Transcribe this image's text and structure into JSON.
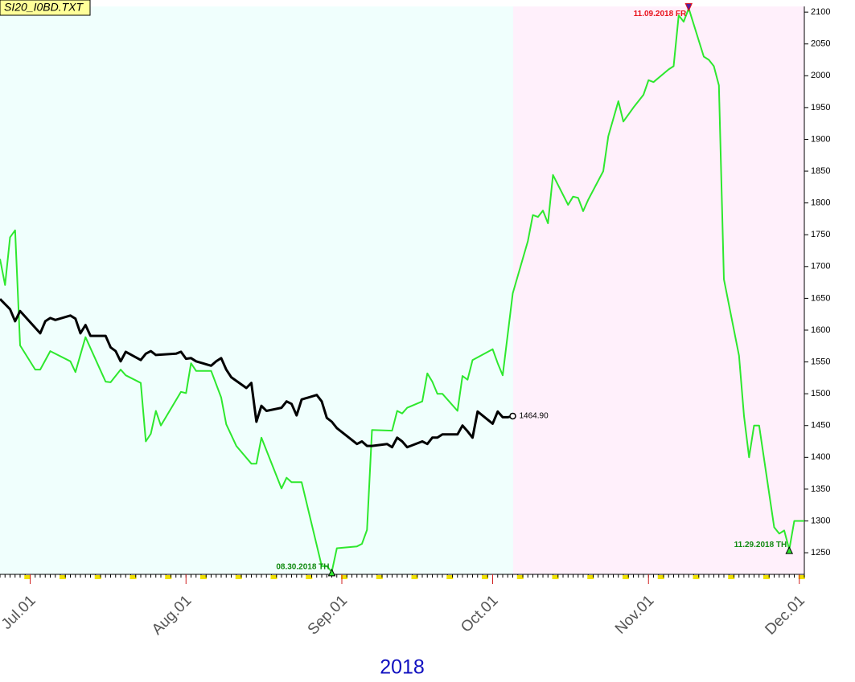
{
  "chart_data": {
    "type": "line",
    "title": "SI20_I0BD.TXT",
    "xlabel": "2018",
    "xlim": [
      "2018-06-25",
      "2018-12-02"
    ],
    "xticks": [
      {
        "value": "2018-07-01",
        "label": "Jul.01"
      },
      {
        "value": "2018-08-01",
        "label": "Aug.01"
      },
      {
        "value": "2018-09-01",
        "label": "Sep.01"
      },
      {
        "value": "2018-10-01",
        "label": "Oct.01"
      },
      {
        "value": "2018-11-01",
        "label": "Nov.01"
      },
      {
        "value": "2018-12-01",
        "label": "Dec.01"
      }
    ],
    "ylim": [
      1216,
      2109
    ],
    "yticks": [
      1250,
      1300,
      1350,
      1400,
      1450,
      1500,
      1550,
      1600,
      1650,
      1700,
      1750,
      1800,
      1850,
      1900,
      1950,
      2000,
      2050,
      2100
    ],
    "series": [
      {
        "color": "#2ee82e",
        "x": [
          "2018-06-25",
          "2018-06-26",
          "2018-06-27",
          "2018-06-28",
          "2018-06-29",
          "2018-07-02",
          "2018-07-03",
          "2018-07-05",
          "2018-07-09",
          "2018-07-10",
          "2018-07-12",
          "2018-07-16",
          "2018-07-17",
          "2018-07-19",
          "2018-07-20",
          "2018-07-23",
          "2018-07-24",
          "2018-07-25",
          "2018-07-26",
          "2018-07-27",
          "2018-07-31",
          "2018-08-01",
          "2018-08-02",
          "2018-08-03",
          "2018-08-06",
          "2018-08-08",
          "2018-08-09",
          "2018-08-11",
          "2018-08-14",
          "2018-08-15",
          "2018-08-16",
          "2018-08-20",
          "2018-08-21",
          "2018-08-22",
          "2018-08-24",
          "2018-08-28",
          "2018-08-29",
          "2018-08-30",
          "2018-08-31",
          "2018-09-04",
          "2018-09-05",
          "2018-09-06",
          "2018-09-07",
          "2018-09-11",
          "2018-09-12",
          "2018-09-13",
          "2018-09-14",
          "2018-09-17",
          "2018-09-18",
          "2018-09-19",
          "2018-09-20",
          "2018-09-21",
          "2018-09-24",
          "2018-09-25",
          "2018-09-26",
          "2018-09-27",
          "2018-10-01",
          "2018-10-02",
          "2018-10-03",
          "2018-10-05",
          "2018-10-08",
          "2018-10-09",
          "2018-10-10",
          "2018-10-11",
          "2018-10-12",
          "2018-10-13",
          "2018-10-16",
          "2018-10-17",
          "2018-10-18",
          "2018-10-19",
          "2018-10-20",
          "2018-10-23",
          "2018-10-24",
          "2018-10-26",
          "2018-10-27",
          "2018-10-29",
          "2018-10-31",
          "2018-11-01",
          "2018-11-02",
          "2018-11-05",
          "2018-11-06",
          "2018-11-07",
          "2018-11-08",
          "2018-11-09",
          "2018-11-12",
          "2018-11-13",
          "2018-11-14",
          "2018-11-15",
          "2018-11-16",
          "2018-11-19",
          "2018-11-20",
          "2018-11-21",
          "2018-11-22",
          "2018-11-23",
          "2018-11-26",
          "2018-11-27",
          "2018-11-28",
          "2018-11-29",
          "2018-11-30",
          "2018-12-02"
        ],
        "values": [
          1712,
          1671,
          1746,
          1757,
          1576,
          1538,
          1538,
          1567,
          1551,
          1534,
          1589,
          1519,
          1518,
          1538,
          1529,
          1517,
          1425,
          1437,
          1473,
          1450,
          1503,
          1501,
          1548,
          1536,
          1536,
          1494,
          1452,
          1418,
          1390,
          1390,
          1431,
          1351,
          1368,
          1361,
          1361,
          1229,
          1229,
          1220,
          1257,
          1260,
          1264,
          1286,
          1443,
          1442,
          1473,
          1469,
          1478,
          1488,
          1532,
          1519,
          1500,
          1500,
          1473,
          1528,
          1522,
          1553,
          1570,
          1548,
          1529,
          1658,
          1740,
          1781,
          1778,
          1788,
          1768,
          1844,
          1797,
          1810,
          1808,
          1787,
          1805,
          1850,
          1905,
          1960,
          1928,
          1950,
          1970,
          1993,
          1990,
          2010,
          2015,
          2095,
          2085,
          2106,
          2030,
          2025,
          2015,
          1985,
          1680,
          1560,
          1465,
          1400,
          1450,
          1450,
          1290,
          1280,
          1285,
          1255,
          1300,
          1300
        ]
      },
      {
        "color": "#000000",
        "x": [
          "2018-06-25",
          "2018-06-27",
          "2018-06-28",
          "2018-06-29",
          "2018-07-03",
          "2018-07-04",
          "2018-07-05",
          "2018-07-06",
          "2018-07-09",
          "2018-07-10",
          "2018-07-11",
          "2018-07-12",
          "2018-07-13",
          "2018-07-16",
          "2018-07-17",
          "2018-07-18",
          "2018-07-19",
          "2018-07-20",
          "2018-07-23",
          "2018-07-24",
          "2018-07-25",
          "2018-07-26",
          "2018-07-30",
          "2018-07-31",
          "2018-08-01",
          "2018-08-02",
          "2018-08-03",
          "2018-08-06",
          "2018-08-07",
          "2018-08-08",
          "2018-08-09",
          "2018-08-10",
          "2018-08-13",
          "2018-08-14",
          "2018-08-15",
          "2018-08-16",
          "2018-08-17",
          "2018-08-20",
          "2018-08-21",
          "2018-08-22",
          "2018-08-23",
          "2018-08-24",
          "2018-08-27",
          "2018-08-28",
          "2018-08-29",
          "2018-08-30",
          "2018-08-31",
          "2018-09-04",
          "2018-09-05",
          "2018-09-06",
          "2018-09-07",
          "2018-09-10",
          "2018-09-11",
          "2018-09-12",
          "2018-09-13",
          "2018-09-14",
          "2018-09-17",
          "2018-09-18",
          "2018-09-19",
          "2018-09-20",
          "2018-09-21",
          "2018-09-24",
          "2018-09-25",
          "2018-09-26",
          "2018-09-27",
          "2018-09-28",
          "2018-10-01",
          "2018-10-02",
          "2018-10-03",
          "2018-10-04",
          "2018-10-05"
        ],
        "values": [
          1649,
          1633,
          1614,
          1630,
          1595,
          1614,
          1619,
          1616,
          1623,
          1618,
          1595,
          1608,
          1591,
          1591,
          1573,
          1567,
          1551,
          1566,
          1553,
          1563,
          1567,
          1561,
          1563,
          1566,
          1555,
          1556,
          1551,
          1544,
          1551,
          1556,
          1538,
          1526,
          1509,
          1517,
          1456,
          1481,
          1473,
          1478,
          1488,
          1484,
          1466,
          1491,
          1498,
          1488,
          1462,
          1456,
          1446,
          1421,
          1425,
          1418,
          1418,
          1421,
          1416,
          1431,
          1425,
          1416,
          1425,
          1421,
          1431,
          1431,
          1436,
          1436,
          1450,
          1441,
          1431,
          1472,
          1453,
          1472,
          1463,
          1463,
          1464.9
        ]
      }
    ],
    "annotations": [
      {
        "text": "11.09.2018 FR",
        "x": "2018-11-09",
        "y": 2106,
        "color": "#e8101a",
        "marker": "high"
      },
      {
        "text": "08.30.2018 TH",
        "x": "2018-08-30",
        "y": 1220,
        "color": "#108a10",
        "marker": "low"
      },
      {
        "text": "11.29.2018 TH",
        "x": "2018-11-29",
        "y": 1255,
        "color": "#108a10",
        "marker": "low"
      },
      {
        "text": "1464.90",
        "x": "2018-10-05",
        "y": 1464.9,
        "color": "#000000",
        "marker": "circle"
      }
    ]
  }
}
